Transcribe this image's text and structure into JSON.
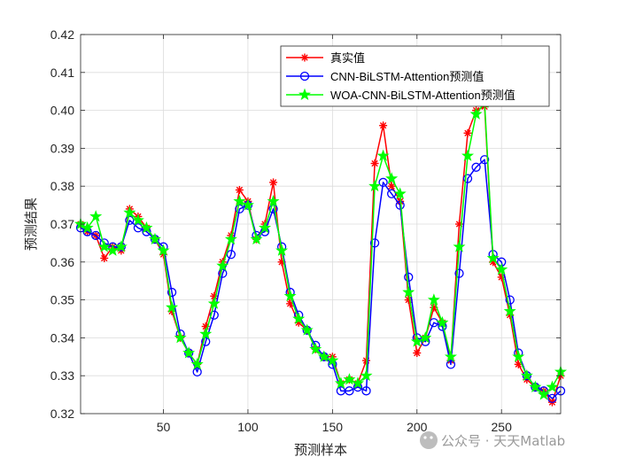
{
  "chart_data": {
    "type": "line",
    "xlabel": "预测样本",
    "ylabel": "预测结果",
    "xlim": [
      1,
      285
    ],
    "ylim": [
      0.32,
      0.42
    ],
    "xticks": [
      50,
      100,
      150,
      200,
      250
    ],
    "yticks": [
      0.32,
      0.33,
      0.34,
      0.35,
      0.36,
      0.37,
      0.38,
      0.39,
      0.4,
      0.41,
      0.42
    ],
    "grid": true,
    "legend_position": "top-right",
    "colors": {
      "real": "#ff0000",
      "cnn": "#0000ff",
      "woa": "#00ff00"
    },
    "series": [
      {
        "name": "真实值",
        "marker": "asterisk",
        "color": "#ff0000",
        "points": [
          [
            1,
            0.37
          ],
          [
            5,
            0.368
          ],
          [
            10,
            0.367
          ],
          [
            15,
            0.361
          ],
          [
            20,
            0.364
          ],
          [
            25,
            0.363
          ],
          [
            30,
            0.374
          ],
          [
            35,
            0.372
          ],
          [
            40,
            0.369
          ],
          [
            45,
            0.366
          ],
          [
            50,
            0.362
          ],
          [
            55,
            0.347
          ],
          [
            60,
            0.34
          ],
          [
            65,
            0.336
          ],
          [
            70,
            0.333
          ],
          [
            75,
            0.343
          ],
          [
            80,
            0.351
          ],
          [
            85,
            0.36
          ],
          [
            90,
            0.367
          ],
          [
            95,
            0.379
          ],
          [
            100,
            0.376
          ],
          [
            105,
            0.366
          ],
          [
            110,
            0.37
          ],
          [
            115,
            0.381
          ],
          [
            120,
            0.36
          ],
          [
            125,
            0.349
          ],
          [
            130,
            0.344
          ],
          [
            135,
            0.342
          ],
          [
            140,
            0.337
          ],
          [
            145,
            0.335
          ],
          [
            150,
            0.335
          ],
          [
            155,
            0.328
          ],
          [
            160,
            0.329
          ],
          [
            165,
            0.328
          ],
          [
            170,
            0.334
          ],
          [
            175,
            0.386
          ],
          [
            180,
            0.396
          ],
          [
            185,
            0.38
          ],
          [
            190,
            0.376
          ],
          [
            195,
            0.35
          ],
          [
            200,
            0.336
          ],
          [
            205,
            0.34
          ],
          [
            210,
            0.348
          ],
          [
            215,
            0.344
          ],
          [
            220,
            0.334
          ],
          [
            225,
            0.37
          ],
          [
            230,
            0.394
          ],
          [
            235,
            0.4
          ],
          [
            240,
            0.401
          ],
          [
            245,
            0.36
          ],
          [
            250,
            0.356
          ],
          [
            255,
            0.346
          ],
          [
            260,
            0.333
          ],
          [
            265,
            0.329
          ],
          [
            270,
            0.327
          ],
          [
            275,
            0.326
          ],
          [
            280,
            0.323
          ],
          [
            285,
            0.33
          ]
        ]
      },
      {
        "name": "CNN-BiLSTM-Attention预测值",
        "marker": "circle",
        "color": "#0000ff",
        "points": [
          [
            1,
            0.369
          ],
          [
            5,
            0.368
          ],
          [
            10,
            0.367
          ],
          [
            15,
            0.365
          ],
          [
            20,
            0.364
          ],
          [
            25,
            0.364
          ],
          [
            30,
            0.371
          ],
          [
            35,
            0.369
          ],
          [
            40,
            0.368
          ],
          [
            45,
            0.366
          ],
          [
            50,
            0.364
          ],
          [
            55,
            0.352
          ],
          [
            60,
            0.341
          ],
          [
            65,
            0.336
          ],
          [
            70,
            0.331
          ],
          [
            75,
            0.339
          ],
          [
            80,
            0.346
          ],
          [
            85,
            0.357
          ],
          [
            90,
            0.362
          ],
          [
            95,
            0.374
          ],
          [
            100,
            0.375
          ],
          [
            105,
            0.367
          ],
          [
            110,
            0.368
          ],
          [
            115,
            0.374
          ],
          [
            120,
            0.364
          ],
          [
            125,
            0.352
          ],
          [
            130,
            0.346
          ],
          [
            135,
            0.342
          ],
          [
            140,
            0.338
          ],
          [
            145,
            0.335
          ],
          [
            150,
            0.333
          ],
          [
            155,
            0.326
          ],
          [
            160,
            0.326
          ],
          [
            165,
            0.327
          ],
          [
            170,
            0.326
          ],
          [
            175,
            0.365
          ],
          [
            180,
            0.381
          ],
          [
            185,
            0.378
          ],
          [
            190,
            0.375
          ],
          [
            195,
            0.356
          ],
          [
            200,
            0.34
          ],
          [
            205,
            0.339
          ],
          [
            210,
            0.344
          ],
          [
            215,
            0.343
          ],
          [
            220,
            0.333
          ],
          [
            225,
            0.357
          ],
          [
            230,
            0.382
          ],
          [
            235,
            0.385
          ],
          [
            240,
            0.387
          ],
          [
            245,
            0.362
          ],
          [
            250,
            0.36
          ],
          [
            255,
            0.35
          ],
          [
            260,
            0.336
          ],
          [
            265,
            0.33
          ],
          [
            270,
            0.327
          ],
          [
            275,
            0.326
          ],
          [
            280,
            0.324
          ],
          [
            285,
            0.326
          ]
        ]
      },
      {
        "name": "WOA-CNN-BiLSTM-Attention预测值",
        "marker": "pentagram",
        "color": "#00ff00",
        "points": [
          [
            1,
            0.37
          ],
          [
            5,
            0.369
          ],
          [
            10,
            0.372
          ],
          [
            15,
            0.364
          ],
          [
            20,
            0.363
          ],
          [
            25,
            0.364
          ],
          [
            30,
            0.373
          ],
          [
            35,
            0.371
          ],
          [
            40,
            0.369
          ],
          [
            45,
            0.366
          ],
          [
            50,
            0.363
          ],
          [
            55,
            0.348
          ],
          [
            60,
            0.34
          ],
          [
            65,
            0.336
          ],
          [
            70,
            0.333
          ],
          [
            75,
            0.341
          ],
          [
            80,
            0.349
          ],
          [
            85,
            0.359
          ],
          [
            90,
            0.366
          ],
          [
            95,
            0.376
          ],
          [
            100,
            0.375
          ],
          [
            105,
            0.366
          ],
          [
            110,
            0.369
          ],
          [
            115,
            0.376
          ],
          [
            120,
            0.363
          ],
          [
            125,
            0.351
          ],
          [
            130,
            0.345
          ],
          [
            135,
            0.342
          ],
          [
            140,
            0.337
          ],
          [
            145,
            0.335
          ],
          [
            150,
            0.334
          ],
          [
            155,
            0.328
          ],
          [
            160,
            0.329
          ],
          [
            165,
            0.328
          ],
          [
            170,
            0.33
          ],
          [
            175,
            0.38
          ],
          [
            180,
            0.388
          ],
          [
            185,
            0.382
          ],
          [
            190,
            0.378
          ],
          [
            195,
            0.352
          ],
          [
            200,
            0.339
          ],
          [
            205,
            0.34
          ],
          [
            210,
            0.35
          ],
          [
            215,
            0.344
          ],
          [
            220,
            0.335
          ],
          [
            225,
            0.364
          ],
          [
            230,
            0.388
          ],
          [
            235,
            0.399
          ],
          [
            240,
            0.402
          ],
          [
            245,
            0.361
          ],
          [
            250,
            0.358
          ],
          [
            255,
            0.347
          ],
          [
            260,
            0.335
          ],
          [
            265,
            0.33
          ],
          [
            270,
            0.327
          ],
          [
            275,
            0.325
          ],
          [
            280,
            0.327
          ],
          [
            285,
            0.331
          ]
        ]
      }
    ]
  },
  "watermark": "公众号 · 天天Matlab"
}
